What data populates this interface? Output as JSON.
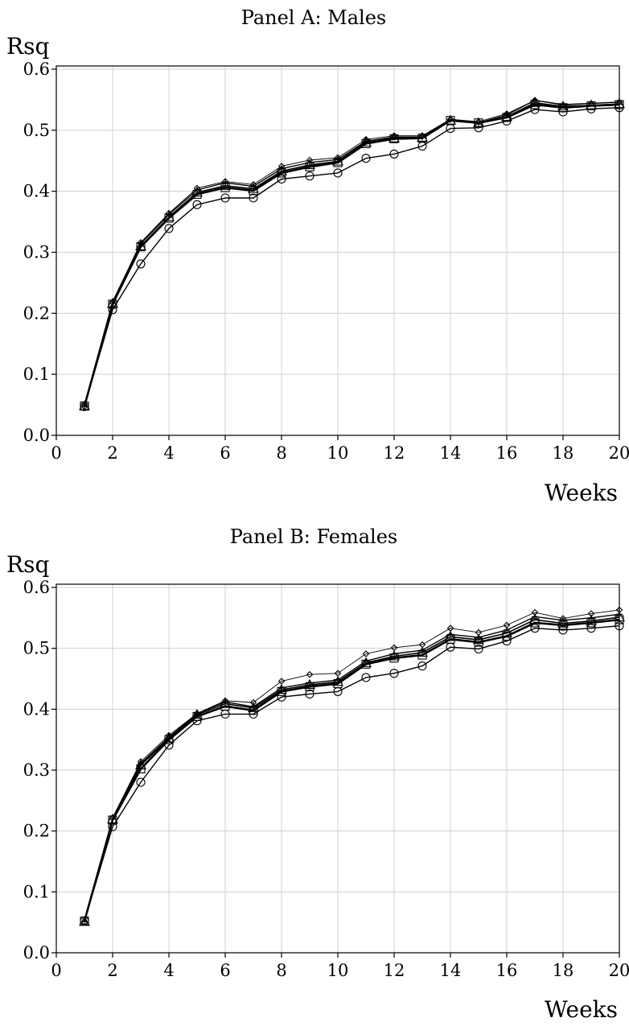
{
  "chart_data": [
    {
      "type": "line",
      "title": "Panel A: Males",
      "xlabel": "Weeks",
      "ylabel": "Rsq",
      "xlim": [
        0,
        20
      ],
      "ylim": [
        0,
        0.6
      ],
      "xticks": [
        "0",
        "2",
        "4",
        "6",
        "8",
        "10",
        "12",
        "14",
        "16",
        "18",
        "20"
      ],
      "yticks": [
        "0.0",
        "0.1",
        "0.2",
        "0.3",
        "0.4",
        "0.5",
        "0.6"
      ],
      "grid": true,
      "x": [
        1,
        2,
        3,
        4,
        5,
        6,
        7,
        8,
        9,
        10,
        11,
        12,
        13,
        14,
        15,
        16,
        17,
        18,
        19,
        20
      ],
      "series": [
        {
          "marker": "diamond",
          "values": [
            0.047,
            0.218,
            0.316,
            0.364,
            0.405,
            0.416,
            0.411,
            0.441,
            0.451,
            0.455,
            0.485,
            0.491,
            0.491,
            0.518,
            0.514,
            0.527,
            0.549,
            0.541,
            0.544,
            0.546
          ]
        },
        {
          "marker": "plus",
          "values": [
            0.047,
            0.219,
            0.314,
            0.362,
            0.402,
            0.414,
            0.408,
            0.437,
            0.447,
            0.452,
            0.482,
            0.489,
            0.489,
            0.518,
            0.512,
            0.525,
            0.549,
            0.542,
            0.544,
            0.546
          ]
        },
        {
          "marker": "triangle",
          "values": [
            0.048,
            0.216,
            0.31,
            0.358,
            0.398,
            0.409,
            0.404,
            0.433,
            0.443,
            0.449,
            0.48,
            0.487,
            0.488,
            0.516,
            0.512,
            0.522,
            0.545,
            0.539,
            0.541,
            0.543
          ]
        },
        {
          "marker": "square",
          "values": [
            0.048,
            0.215,
            0.309,
            0.356,
            0.395,
            0.406,
            0.401,
            0.43,
            0.44,
            0.447,
            0.478,
            0.486,
            0.487,
            0.516,
            0.512,
            0.521,
            0.542,
            0.537,
            0.54,
            0.542
          ]
        },
        {
          "marker": "circle",
          "values": [
            0.047,
            0.206,
            0.281,
            0.339,
            0.378,
            0.389,
            0.389,
            0.42,
            0.425,
            0.43,
            0.454,
            0.461,
            0.474,
            0.503,
            0.504,
            0.515,
            0.534,
            0.53,
            0.535,
            0.537
          ]
        }
      ]
    },
    {
      "type": "line",
      "title": "Panel B: Females",
      "xlabel": "Weeks",
      "ylabel": "Rsq",
      "xlim": [
        0,
        20
      ],
      "ylim": [
        0,
        0.6
      ],
      "xticks": [
        "0",
        "2",
        "4",
        "6",
        "8",
        "10",
        "12",
        "14",
        "16",
        "18",
        "20"
      ],
      "yticks": [
        "0.0",
        "0.1",
        "0.2",
        "0.3",
        "0.4",
        "0.5",
        "0.6"
      ],
      "grid": true,
      "x": [
        1,
        2,
        3,
        4,
        5,
        6,
        7,
        8,
        9,
        10,
        11,
        12,
        13,
        14,
        15,
        16,
        17,
        18,
        19,
        20
      ],
      "series": [
        {
          "marker": "diamond",
          "values": [
            0.05,
            0.222,
            0.314,
            0.357,
            0.393,
            0.414,
            0.411,
            0.446,
            0.457,
            0.459,
            0.491,
            0.501,
            0.506,
            0.533,
            0.526,
            0.538,
            0.559,
            0.549,
            0.557,
            0.563
          ]
        },
        {
          "marker": "plus",
          "values": [
            0.051,
            0.22,
            0.311,
            0.354,
            0.393,
            0.412,
            0.404,
            0.435,
            0.443,
            0.448,
            0.479,
            0.491,
            0.497,
            0.523,
            0.518,
            0.53,
            0.552,
            0.546,
            0.55,
            0.556
          ]
        },
        {
          "marker": "triangle",
          "values": [
            0.051,
            0.219,
            0.308,
            0.352,
            0.391,
            0.409,
            0.402,
            0.432,
            0.44,
            0.445,
            0.476,
            0.487,
            0.493,
            0.519,
            0.514,
            0.525,
            0.547,
            0.541,
            0.545,
            0.551
          ]
        },
        {
          "marker": "square",
          "values": [
            0.052,
            0.218,
            0.302,
            0.35,
            0.388,
            0.405,
            0.398,
            0.429,
            0.437,
            0.442,
            0.474,
            0.484,
            0.489,
            0.515,
            0.51,
            0.52,
            0.542,
            0.538,
            0.542,
            0.547
          ]
        },
        {
          "marker": "circle",
          "values": [
            0.052,
            0.207,
            0.28,
            0.341,
            0.381,
            0.392,
            0.392,
            0.42,
            0.425,
            0.429,
            0.452,
            0.459,
            0.471,
            0.502,
            0.499,
            0.512,
            0.533,
            0.53,
            0.533,
            0.537
          ]
        }
      ]
    }
  ]
}
